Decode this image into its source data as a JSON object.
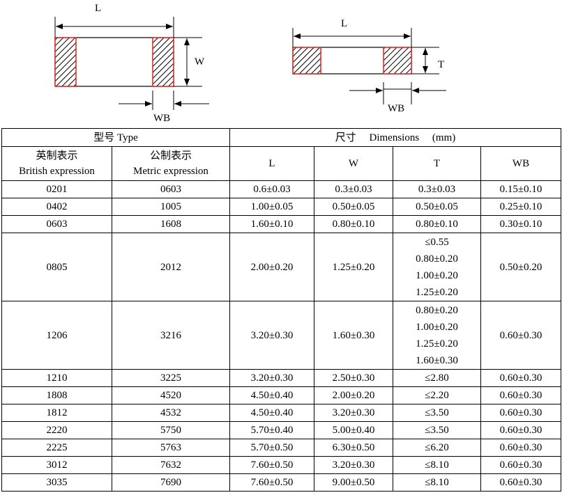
{
  "diagram": {
    "top_view": {
      "L": "L",
      "W": "W",
      "WB": "WB"
    },
    "side_view": {
      "L": "L",
      "T": "T",
      "WB": "WB"
    },
    "colors": {
      "terminal_outline": "#e02020",
      "hatch": "#000000"
    }
  },
  "table": {
    "header": {
      "type": "型号 Type",
      "dimensions": "尺寸　 Dimensions　 (mm)",
      "british_cn": "英制表示",
      "british_en": "British expression",
      "metric_cn": "公制表示",
      "metric_en": "Metric expression",
      "L": "L",
      "W": "W",
      "T": "T",
      "WB": "WB"
    },
    "rows": [
      {
        "british": "0201",
        "metric": "0603",
        "L": "0.6±0.03",
        "W": "0.3±0.03",
        "T": [
          "0.3±0.03"
        ],
        "WB": "0.15±0.10"
      },
      {
        "british": "0402",
        "metric": "1005",
        "L": "1.00±0.05",
        "W": "0.50±0.05",
        "T": [
          "0.50±0.05"
        ],
        "WB": "0.25±0.10"
      },
      {
        "british": "0603",
        "metric": "1608",
        "L": "1.60±0.10",
        "W": "0.80±0.10",
        "T": [
          "0.80±0.10"
        ],
        "WB": "0.30±0.10"
      },
      {
        "british": "0805",
        "metric": "2012",
        "L": "2.00±0.20",
        "W": "1.25±0.20",
        "T": [
          "≤0.55",
          "0.80±0.20",
          "1.00±0.20",
          "1.25±0.20"
        ],
        "WB": "0.50±0.20"
      },
      {
        "british": "1206",
        "metric": "3216",
        "L": "3.20±0.30",
        "W": "1.60±0.30",
        "T": [
          "0.80±0.20",
          "1.00±0.20",
          "1.25±0.20",
          "1.60±0.30"
        ],
        "WB": "0.60±0.30"
      },
      {
        "british": "1210",
        "metric": "3225",
        "L": "3.20±0.30",
        "W": "2.50±0.30",
        "T": [
          "≤2.80"
        ],
        "WB": "0.60±0.30"
      },
      {
        "british": "1808",
        "metric": "4520",
        "L": "4.50±0.40",
        "W": "2.00±0.20",
        "T": [
          "≤2.20"
        ],
        "WB": "0.60±0.30"
      },
      {
        "british": "1812",
        "metric": "4532",
        "L": "4.50±0.40",
        "W": "3.20±0.30",
        "T": [
          "≤3.50"
        ],
        "WB": "0.60±0.30"
      },
      {
        "british": "2220",
        "metric": "5750",
        "L": "5.70±0.40",
        "W": "5.00±0.40",
        "T": [
          "≤3.50"
        ],
        "WB": "0.60±0.30"
      },
      {
        "british": "2225",
        "metric": "5763",
        "L": "5.70±0.50",
        "W": "6.30±0.50",
        "T": [
          "≤6.20"
        ],
        "WB": "0.60±0.30"
      },
      {
        "british": "3012",
        "metric": "7632",
        "L": "7.60±0.50",
        "W": "3.20±0.30",
        "T": [
          "≤8.10"
        ],
        "WB": "0.60±0.30"
      },
      {
        "british": "3035",
        "metric": "7690",
        "L": "7.60±0.50",
        "W": "9.00±0.50",
        "T": [
          "≤8.10"
        ],
        "WB": "0.60±0.30"
      }
    ]
  }
}
